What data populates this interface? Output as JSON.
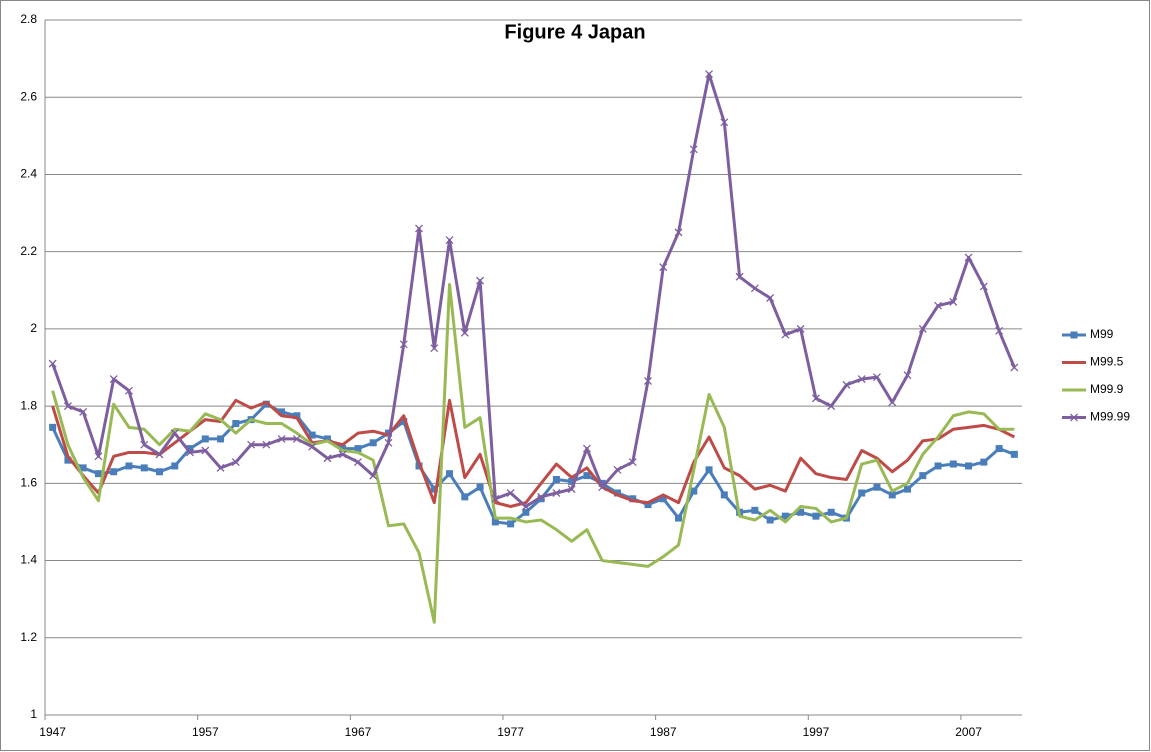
{
  "chart_data": {
    "type": "line",
    "title": "Figure 4 Japan",
    "categories": [
      1947,
      null,
      null,
      null,
      null,
      null,
      null,
      null,
      null,
      null,
      1957,
      null,
      null,
      null,
      null,
      null,
      null,
      null,
      null,
      null,
      1967,
      null,
      null,
      null,
      null,
      null,
      null,
      null,
      null,
      null,
      1977,
      null,
      null,
      null,
      null,
      null,
      null,
      null,
      null,
      null,
      1987,
      null,
      null,
      null,
      null,
      null,
      null,
      null,
      null,
      null,
      1997,
      null,
      null,
      null,
      null,
      null,
      null,
      null,
      null,
      null,
      2007,
      null,
      null,
      null
    ],
    "ylim": [
      1,
      2.8
    ],
    "yticks": [
      1,
      1.2,
      1.4,
      1.6,
      1.8,
      2,
      2.2,
      2.4,
      2.6,
      2.8
    ],
    "grid": true,
    "legend": "right",
    "series": [
      {
        "name": "M99",
        "color": "#4a7ebb",
        "marker": "square",
        "values": [
          1.745,
          1.66,
          1.64,
          1.625,
          1.63,
          1.645,
          1.64,
          1.63,
          1.645,
          1.69,
          1.715,
          1.715,
          1.755,
          1.765,
          1.805,
          1.785,
          1.775,
          1.725,
          1.715,
          1.69,
          1.69,
          1.705,
          1.73,
          1.76,
          1.645,
          1.585,
          1.625,
          1.565,
          1.59,
          1.5,
          1.495,
          1.525,
          1.56,
          1.61,
          1.605,
          1.62,
          1.6,
          1.575,
          1.56,
          1.545,
          1.56,
          1.51,
          1.58,
          1.635,
          1.57,
          1.525,
          1.53,
          1.505,
          1.515,
          1.525,
          1.515,
          1.525,
          1.51,
          1.575,
          1.59,
          1.57,
          1.585,
          1.62,
          1.645,
          1.65,
          1.645,
          1.655,
          1.69,
          1.675
        ]
      },
      {
        "name": "M99.5",
        "color": "#be4b48",
        "marker": "none",
        "values": [
          1.8,
          1.67,
          1.62,
          1.575,
          1.67,
          1.68,
          1.68,
          1.675,
          1.705,
          1.735,
          1.765,
          1.76,
          1.815,
          1.795,
          1.81,
          1.775,
          1.77,
          1.705,
          1.71,
          1.7,
          1.73,
          1.735,
          1.725,
          1.775,
          1.655,
          1.55,
          1.815,
          1.615,
          1.675,
          1.55,
          1.54,
          1.55,
          1.6,
          1.65,
          1.615,
          1.64,
          1.59,
          1.57,
          1.555,
          1.55,
          1.57,
          1.55,
          1.655,
          1.72,
          1.64,
          1.62,
          1.585,
          1.595,
          1.58,
          1.665,
          1.625,
          1.615,
          1.61,
          1.685,
          1.665,
          1.63,
          1.66,
          1.71,
          1.715,
          1.74,
          1.745,
          1.75,
          1.74,
          1.72
        ]
      },
      {
        "name": "M99.9",
        "color": "#98b954",
        "marker": "none",
        "values": [
          1.84,
          1.7,
          1.615,
          1.555,
          1.805,
          1.745,
          1.74,
          1.7,
          1.74,
          1.735,
          1.78,
          1.765,
          1.73,
          1.765,
          1.755,
          1.755,
          1.73,
          1.7,
          1.71,
          1.685,
          1.68,
          1.66,
          1.49,
          1.495,
          1.42,
          1.24,
          2.115,
          1.745,
          1.77,
          1.51,
          1.51,
          1.5,
          1.505,
          1.48,
          1.45,
          1.48,
          1.4,
          1.395,
          1.39,
          1.385,
          1.41,
          1.44,
          1.635,
          1.83,
          1.745,
          1.515,
          1.505,
          1.53,
          1.5,
          1.54,
          1.535,
          1.5,
          1.51,
          1.65,
          1.66,
          1.58,
          1.6,
          1.675,
          1.72,
          1.775,
          1.785,
          1.78,
          1.74,
          1.74
        ]
      },
      {
        "name": "M99.99",
        "color": "#7d5fa0",
        "marker": "x",
        "values": [
          1.91,
          1.8,
          1.785,
          1.67,
          1.87,
          1.84,
          1.7,
          1.675,
          1.73,
          1.68,
          1.685,
          1.64,
          1.655,
          1.7,
          1.7,
          1.715,
          1.715,
          1.695,
          1.665,
          1.675,
          1.655,
          1.62,
          1.705,
          1.96,
          2.26,
          1.95,
          2.23,
          1.99,
          2.125,
          1.56,
          1.575,
          1.54,
          1.565,
          1.575,
          1.585,
          1.69,
          1.59,
          1.635,
          1.655,
          1.865,
          2.16,
          2.25,
          2.465,
          2.66,
          2.535,
          2.135,
          2.105,
          2.08,
          1.985,
          2.0,
          1.82,
          1.8,
          1.855,
          1.87,
          1.875,
          1.81,
          1.88,
          2.0,
          2.06,
          2.07,
          2.185,
          2.11,
          1.995,
          1.9
        ]
      }
    ]
  }
}
